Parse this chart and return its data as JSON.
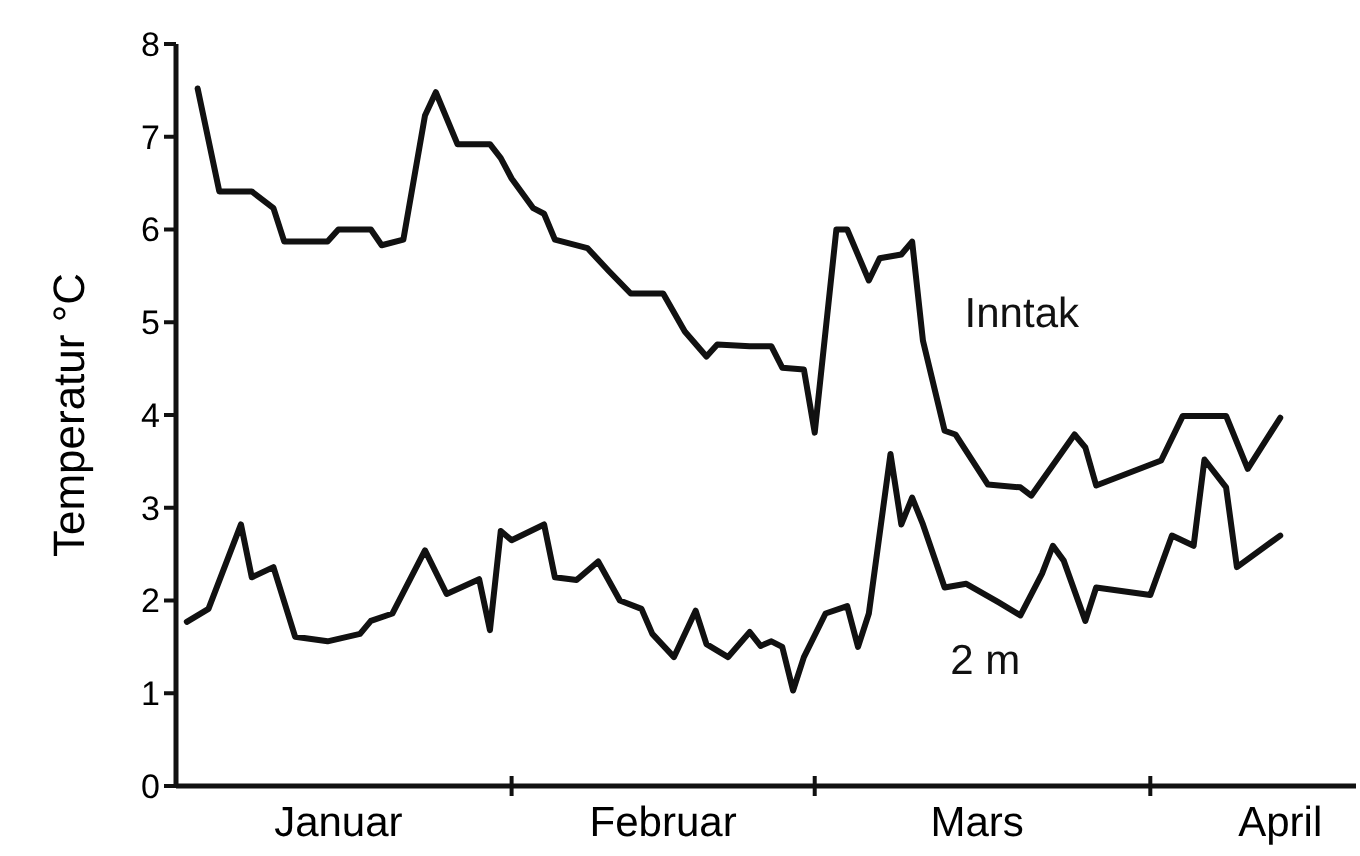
{
  "chart_data": {
    "type": "line",
    "ylabel": "Temperatur °C",
    "xlim": [
      "--01-01",
      "--04-20"
    ],
    "xticks": [
      {
        "value": "--01-16",
        "label": "Januar"
      },
      {
        "value": "--02-01",
        "label": null
      },
      {
        "value": "--02-15",
        "label": "Februar"
      },
      {
        "value": "--03-01",
        "label": null
      },
      {
        "value": "--03-16",
        "label": "Mars"
      },
      {
        "value": "--04-01",
        "label": null
      },
      {
        "value": "--04-13",
        "label": "April"
      }
    ],
    "ylim": [
      0,
      8
    ],
    "yticks": [
      0,
      1,
      2,
      3,
      4,
      5,
      6,
      7,
      8
    ],
    "grid": false,
    "legend": false,
    "marker": "none",
    "line_style": "solid",
    "series": [
      {
        "name": "Inntak",
        "color": "#111111",
        "x": [
          "--01-03",
          "--01-05",
          "--01-08",
          "--01-10",
          "--01-11",
          "--01-15",
          "--01-16",
          "--01-19",
          "--01-20",
          "--01-22",
          "--01-24",
          "--01-25",
          "--01-27",
          "--01-30",
          "--01-31",
          "--02-01",
          "--02-03",
          "--02-04",
          "--02-05",
          "--02-08",
          "--02-10",
          "--02-12",
          "--02-15",
          "--02-17",
          "--02-19",
          "--02-20",
          "--02-23",
          "--02-25",
          "--02-26",
          "--02-28",
          "--03-01",
          "--03-03",
          "--03-04",
          "--03-06",
          "--03-07",
          "--03-09",
          "--03-10",
          "--03-11",
          "--03-13",
          "--03-14",
          "--03-17",
          "--03-20",
          "--03-21",
          "--03-25",
          "--03-26",
          "--03-27",
          "--04-02",
          "--04-04",
          "--04-08",
          "--04-10",
          "--04-13"
        ],
        "values": [
          7.52,
          6.41,
          6.41,
          6.23,
          5.87,
          5.87,
          6.0,
          6.0,
          5.83,
          5.89,
          7.23,
          7.48,
          6.92,
          6.92,
          6.77,
          6.55,
          6.23,
          6.17,
          5.89,
          5.8,
          5.55,
          5.31,
          5.31,
          4.9,
          4.63,
          4.76,
          4.74,
          4.74,
          4.51,
          4.49,
          3.81,
          6.0,
          6.0,
          5.45,
          5.69,
          5.73,
          5.87,
          4.8,
          3.83,
          3.79,
          3.25,
          3.22,
          3.13,
          3.79,
          3.65,
          3.24,
          3.51,
          3.99,
          3.99,
          3.42,
          3.97
        ]
      },
      {
        "name": "2 m",
        "color": "#111111",
        "x": [
          "--01-02",
          "--01-04",
          "--01-07",
          "--01-08",
          "--01-10",
          "--01-12",
          "--01-15",
          "--01-18",
          "--01-19",
          "--01-21",
          "--01-24",
          "--01-26",
          "--01-29",
          "--01-30",
          "--01-31",
          "--02-01",
          "--02-04",
          "--02-05",
          "--02-07",
          "--02-09",
          "--02-11",
          "--02-13",
          "--02-14",
          "--02-16",
          "--02-18",
          "--02-19",
          "--02-21",
          "--02-23",
          "--02-24",
          "--02-25",
          "--02-26",
          "--02-27",
          "--02-28",
          "--03-02",
          "--03-04",
          "--03-05",
          "--03-06",
          "--03-08",
          "--03-09",
          "--03-10",
          "--03-11",
          "--03-13",
          "--03-15",
          "--03-18",
          "--03-20",
          "--03-22",
          "--03-23",
          "--03-24",
          "--03-26",
          "--03-27",
          "--04-01",
          "--04-03",
          "--04-05",
          "--04-06",
          "--04-08",
          "--04-09",
          "--04-13"
        ],
        "values": [
          1.77,
          1.91,
          2.82,
          2.25,
          2.36,
          1.61,
          1.56,
          1.64,
          1.78,
          1.86,
          2.54,
          2.07,
          2.23,
          1.68,
          2.75,
          2.65,
          2.82,
          2.25,
          2.22,
          2.42,
          2.0,
          1.91,
          1.64,
          1.39,
          1.89,
          1.53,
          1.39,
          1.66,
          1.51,
          1.56,
          1.5,
          1.03,
          1.39,
          1.86,
          1.94,
          1.5,
          1.86,
          3.58,
          2.82,
          3.11,
          2.82,
          2.14,
          2.18,
          1.98,
          1.84,
          2.29,
          2.59,
          2.43,
          1.78,
          2.14,
          2.06,
          2.7,
          2.59,
          3.52,
          3.22,
          2.36,
          2.7
        ]
      }
    ]
  }
}
